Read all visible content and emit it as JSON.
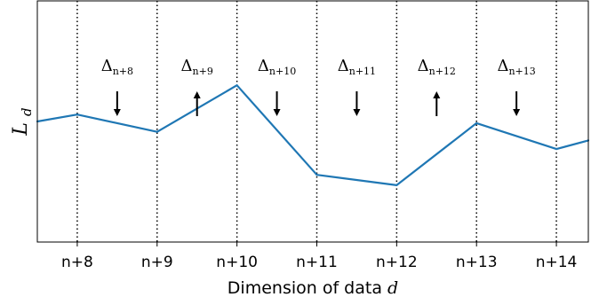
{
  "chart_data": {
    "type": "line",
    "xlabel": "Dimension of data d",
    "xlabel_main": "Dimension of data",
    "xlabel_var": "d",
    "ylabel_main": "L",
    "ylabel_sub": "d",
    "categories": [
      "n+8",
      "n+9",
      "n+10",
      "n+11",
      "n+12",
      "n+13",
      "n+14"
    ],
    "x": [
      7.5,
      8,
      9,
      10,
      11,
      12,
      13,
      14,
      14.4
    ],
    "values": [
      0.5,
      0.54,
      0.44,
      0.71,
      0.19,
      0.13,
      0.49,
      0.34,
      0.39
    ],
    "xlim": [
      7.5,
      14.4
    ],
    "ylim": [
      -0.2,
      1.2
    ],
    "series_color": "#1f77b4",
    "grid": "vertical dotted lines at each x tick",
    "annotations": [
      {
        "label": "Δ",
        "sub": "n+8",
        "direction": "down"
      },
      {
        "label": "Δ",
        "sub": "n+9",
        "direction": "up"
      },
      {
        "label": "Δ",
        "sub": "n+10",
        "direction": "down"
      },
      {
        "label": "Δ",
        "sub": "n+11",
        "direction": "down"
      },
      {
        "label": "Δ",
        "sub": "n+12",
        "direction": "up"
      },
      {
        "label": "Δ",
        "sub": "n+13",
        "direction": "down"
      }
    ]
  }
}
